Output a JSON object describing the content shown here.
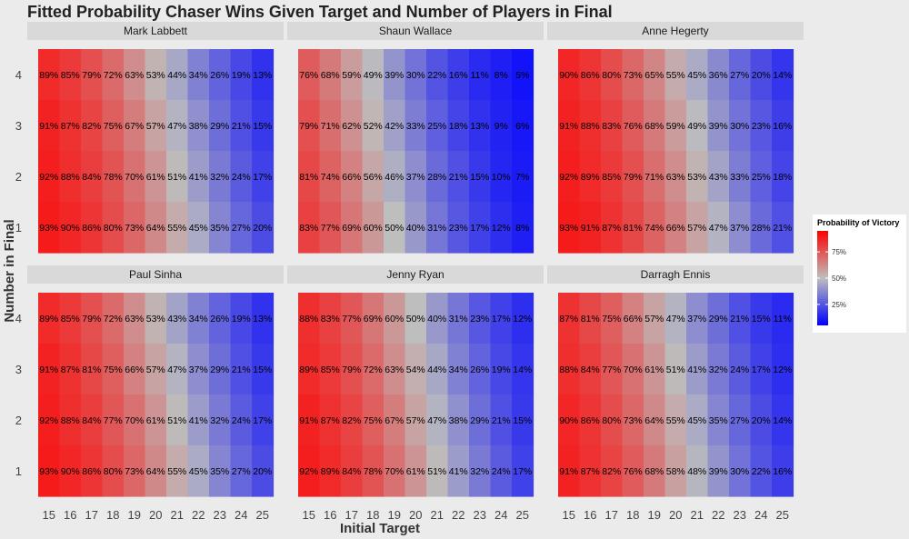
{
  "chart_data": {
    "type": "heatmap",
    "title": "Fitted Probability Chaser Wins Given Target and Number of Players in Final",
    "xlabel": "Initial Target",
    "ylabel": "Number in Final",
    "x": [
      "15",
      "16",
      "17",
      "18",
      "19",
      "20",
      "21",
      "22",
      "23",
      "24",
      "25"
    ],
    "y": [
      "1",
      "2",
      "3",
      "4"
    ],
    "legend": {
      "title": "Probability of Victory",
      "ticks": [
        "75%",
        "50%",
        "25%"
      ],
      "tick_values": [
        0.75,
        0.5,
        0.25
      ],
      "range": [
        0.05,
        0.95
      ],
      "colors": {
        "high": "#ff0000",
        "mid": "#bebebe",
        "low": "#0000ff"
      },
      "position": "right"
    },
    "panels": [
      {
        "name": "Mark Labbett",
        "rows": {
          "4": [
            89,
            85,
            79,
            72,
            63,
            53,
            44,
            34,
            26,
            19,
            13
          ],
          "3": [
            91,
            87,
            82,
            75,
            67,
            57,
            47,
            38,
            29,
            21,
            15
          ],
          "2": [
            92,
            88,
            84,
            78,
            70,
            61,
            51,
            41,
            32,
            24,
            17
          ],
          "1": [
            93,
            90,
            86,
            80,
            73,
            64,
            55,
            45,
            35,
            27,
            20
          ]
        }
      },
      {
        "name": "Shaun Wallace",
        "rows": {
          "4": [
            76,
            68,
            59,
            49,
            39,
            30,
            22,
            16,
            11,
            8,
            5
          ],
          "3": [
            79,
            71,
            62,
            52,
            42,
            33,
            25,
            18,
            13,
            9,
            6
          ],
          "2": [
            81,
            74,
            66,
            56,
            46,
            37,
            28,
            21,
            15,
            10,
            7
          ],
          "1": [
            83,
            77,
            69,
            60,
            50,
            40,
            31,
            23,
            17,
            12,
            8
          ]
        }
      },
      {
        "name": "Anne Hegerty",
        "rows": {
          "4": [
            90,
            86,
            80,
            73,
            65,
            55,
            45,
            36,
            27,
            20,
            14
          ],
          "3": [
            91,
            88,
            83,
            76,
            68,
            59,
            49,
            39,
            30,
            23,
            16
          ],
          "2": [
            92,
            89,
            85,
            79,
            71,
            63,
            53,
            43,
            33,
            25,
            18
          ],
          "1": [
            93,
            91,
            87,
            81,
            74,
            66,
            57,
            47,
            37,
            28,
            21
          ]
        }
      },
      {
        "name": "Paul Sinha",
        "rows": {
          "4": [
            89,
            85,
            79,
            72,
            63,
            53,
            43,
            34,
            26,
            19,
            13
          ],
          "3": [
            91,
            87,
            81,
            75,
            66,
            57,
            47,
            37,
            29,
            21,
            15
          ],
          "2": [
            92,
            88,
            84,
            77,
            70,
            61,
            51,
            41,
            32,
            24,
            17
          ],
          "1": [
            93,
            90,
            86,
            80,
            73,
            64,
            55,
            45,
            35,
            27,
            20
          ]
        }
      },
      {
        "name": "Jenny Ryan",
        "rows": {
          "4": [
            88,
            83,
            77,
            69,
            60,
            50,
            40,
            31,
            23,
            17,
            12
          ],
          "3": [
            89,
            85,
            79,
            72,
            63,
            54,
            44,
            34,
            26,
            19,
            14
          ],
          "2": [
            91,
            87,
            82,
            75,
            67,
            57,
            47,
            38,
            29,
            21,
            15
          ],
          "1": [
            92,
            89,
            84,
            78,
            70,
            61,
            51,
            41,
            32,
            24,
            17
          ]
        }
      },
      {
        "name": "Darragh Ennis",
        "rows": {
          "4": [
            87,
            81,
            75,
            66,
            57,
            47,
            37,
            29,
            21,
            15,
            11
          ],
          "3": [
            88,
            84,
            77,
            70,
            61,
            51,
            41,
            32,
            24,
            17,
            12
          ],
          "2": [
            90,
            86,
            80,
            73,
            64,
            55,
            45,
            35,
            27,
            20,
            14
          ],
          "1": [
            91,
            87,
            82,
            76,
            68,
            58,
            48,
            39,
            30,
            22,
            16
          ]
        }
      }
    ]
  }
}
